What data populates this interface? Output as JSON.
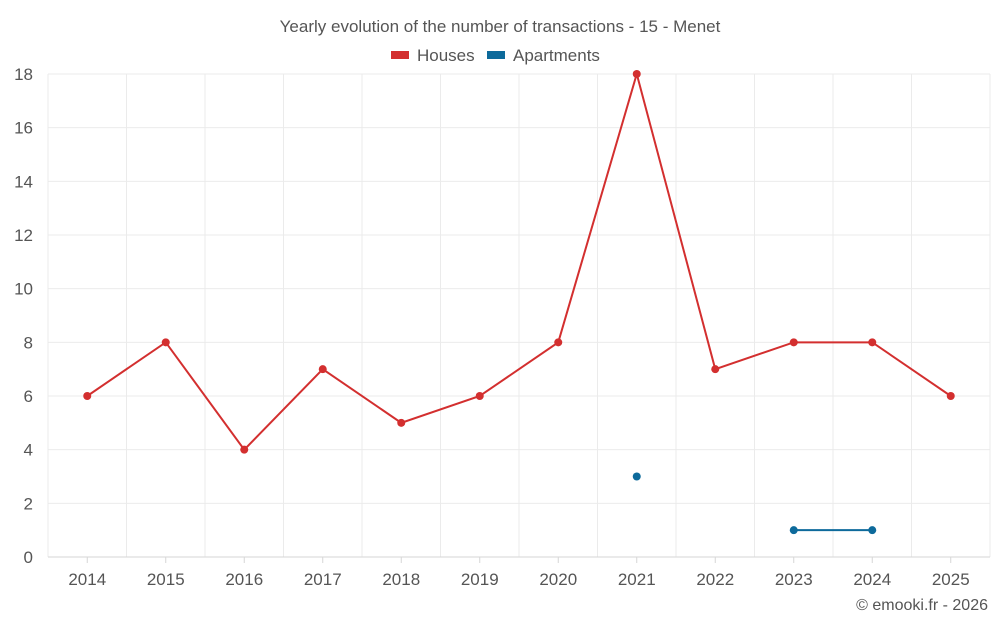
{
  "chart_data": {
    "type": "line",
    "title": "Yearly evolution of the number of transactions - 15 - Menet",
    "xlabel": "",
    "ylabel": "",
    "categories": [
      "2014",
      "2015",
      "2016",
      "2017",
      "2018",
      "2019",
      "2020",
      "2021",
      "2022",
      "2023",
      "2024",
      "2025"
    ],
    "ylim": [
      0,
      18
    ],
    "yticks": [
      0,
      2,
      4,
      6,
      8,
      10,
      12,
      14,
      16,
      18
    ],
    "grid": true,
    "legend_position": "top-center",
    "series": [
      {
        "name": "Houses",
        "color": "#d32f2f",
        "values": [
          6,
          8,
          4,
          7,
          5,
          6,
          8,
          18,
          7,
          8,
          8,
          6
        ]
      },
      {
        "name": "Apartments",
        "color": "#0d6a9b",
        "values": [
          null,
          null,
          null,
          null,
          null,
          null,
          null,
          3,
          null,
          1,
          1,
          null
        ]
      }
    ]
  },
  "credit": "© emooki.fr - 2026"
}
